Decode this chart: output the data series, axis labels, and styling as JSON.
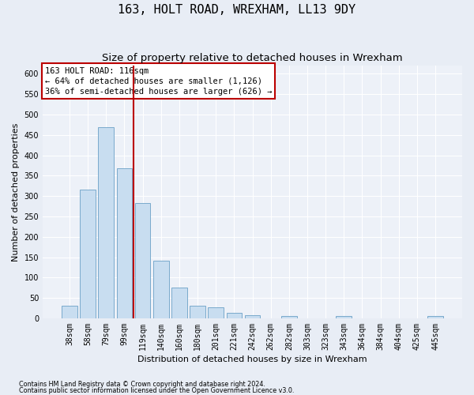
{
  "title": "163, HOLT ROAD, WREXHAM, LL13 9DY",
  "subtitle": "Size of property relative to detached houses in Wrexham",
  "xlabel": "Distribution of detached houses by size in Wrexham",
  "ylabel": "Number of detached properties",
  "categories": [
    "38sqm",
    "58sqm",
    "79sqm",
    "99sqm",
    "119sqm",
    "140sqm",
    "160sqm",
    "180sqm",
    "201sqm",
    "221sqm",
    "242sqm",
    "262sqm",
    "282sqm",
    "303sqm",
    "323sqm",
    "343sqm",
    "364sqm",
    "384sqm",
    "404sqm",
    "425sqm",
    "445sqm"
  ],
  "values": [
    30,
    315,
    468,
    368,
    283,
    141,
    75,
    30,
    27,
    14,
    8,
    0,
    5,
    0,
    0,
    5,
    0,
    0,
    0,
    0,
    5
  ],
  "bar_color": "#c8ddf0",
  "bar_edge_color": "#7aaacc",
  "vline_color": "#bb0000",
  "vline_x": 3.5,
  "annotation_text": "163 HOLT ROAD: 116sqm\n← 64% of detached houses are smaller (1,126)\n36% of semi-detached houses are larger (626) →",
  "annotation_box_color": "#ffffff",
  "annotation_box_edge": "#bb0000",
  "footnote1": "Contains HM Land Registry data © Crown copyright and database right 2024.",
  "footnote2": "Contains public sector information licensed under the Open Government Licence v3.0.",
  "ylim": [
    0,
    620
  ],
  "yticks": [
    0,
    50,
    100,
    150,
    200,
    250,
    300,
    350,
    400,
    450,
    500,
    550,
    600
  ],
  "bg_color": "#e8edf5",
  "plot_bg_color": "#edf1f8",
  "title_fontsize": 11,
  "subtitle_fontsize": 9.5,
  "label_fontsize": 8,
  "tick_fontsize": 7,
  "annot_fontsize": 7.5
}
